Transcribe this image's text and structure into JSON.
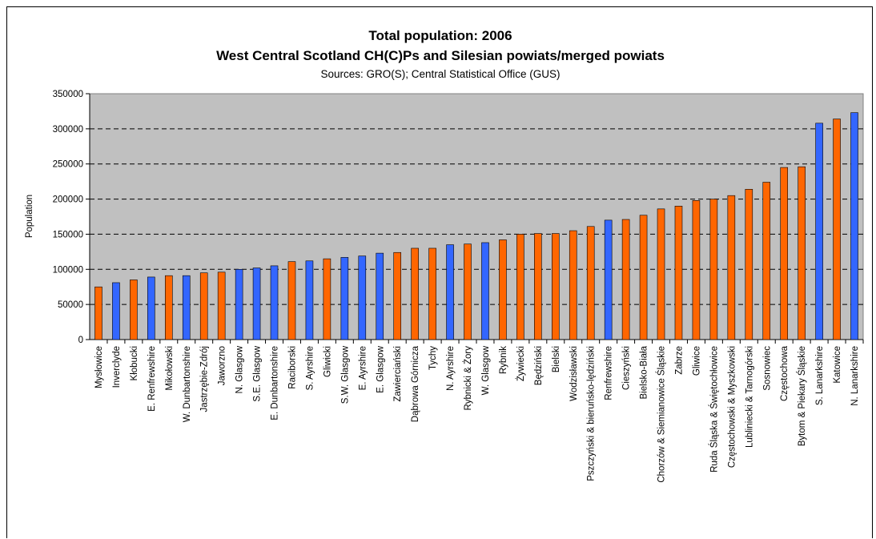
{
  "chart_data": {
    "type": "bar",
    "title": "Total population: 2006",
    "subtitle": "West Central Scotland CH(C)Ps and Silesian powiats/merged powiats",
    "source": "Sources: GRO(S); Central Statistical Office (GUS)",
    "ylabel": "Population",
    "xlabel": "",
    "ylim": [
      0,
      350000
    ],
    "yticks": [
      0,
      50000,
      100000,
      150000,
      200000,
      250000,
      300000,
      350000
    ],
    "ytick_labels": [
      "0",
      "50000",
      "100000",
      "150000",
      "200000",
      "250000",
      "300000",
      "350000"
    ],
    "grid": "horizontal dashed",
    "legend": "none",
    "plot_background": "#c0c0c0",
    "colors": {
      "scotland": "#3366ff",
      "silesia": "#ff6600",
      "bar_edge": "#000000",
      "grid": "#000000"
    },
    "categories": [
      "Mysłowice",
      "Inverclyde",
      "Kłobucki",
      "E. Renfrewshire",
      "Mikołowski",
      "W. Dunbartonshire",
      "Jastrzębie-Zdrój",
      "Jaworzno",
      "N. Glasgow",
      "S.E. Glasgow",
      "E. Dunbartonshire",
      "Raciborski",
      "S. Ayrshire",
      "Gliwicki",
      "S.W. Glasgow",
      "E. Ayrshire",
      "E. Glasgow",
      "Zawierciański",
      "Dąbrowa Górnicza",
      "Tychy",
      "N. Ayrshire",
      "Rybnicki & Żory",
      "W. Glasgow",
      "Rybnik",
      "Żywiecki",
      "Będziński",
      "Bielski",
      "Wodzisławski",
      "Pszczyński & bieruńsko-lędziński",
      "Renfrewshire",
      "Cieszyński",
      "Bielsko-Biała",
      "Chorzów & Siemianowice Śląskie",
      "Zabrze",
      "Gliwice",
      "Ruda Śląska & Świętochłowice",
      "Częstochowski & Myszkowski",
      "Lubliniecki & Tarnogórski",
      "Sosnowiec",
      "Częstochowa",
      "Bytom & Piekary Śląskie",
      "S. Lanarkshire",
      "Katowice",
      "N. Lanarkshire"
    ],
    "values": [
      75000,
      81000,
      85000,
      89000,
      91000,
      91000,
      95000,
      96000,
      100000,
      102000,
      105000,
      111000,
      112000,
      115000,
      117000,
      119000,
      123000,
      124000,
      130000,
      130000,
      135000,
      136000,
      138000,
      142000,
      150000,
      151000,
      151000,
      155000,
      161000,
      170000,
      171000,
      177000,
      186000,
      190000,
      198000,
      200000,
      205000,
      214000,
      224000,
      245000,
      246000,
      308000,
      314000,
      323000
    ],
    "groups": [
      "silesia",
      "scotland",
      "silesia",
      "scotland",
      "silesia",
      "scotland",
      "silesia",
      "silesia",
      "scotland",
      "scotland",
      "scotland",
      "silesia",
      "scotland",
      "silesia",
      "scotland",
      "scotland",
      "scotland",
      "silesia",
      "silesia",
      "silesia",
      "scotland",
      "silesia",
      "scotland",
      "silesia",
      "silesia",
      "silesia",
      "silesia",
      "silesia",
      "silesia",
      "scotland",
      "silesia",
      "silesia",
      "silesia",
      "silesia",
      "silesia",
      "silesia",
      "silesia",
      "silesia",
      "silesia",
      "silesia",
      "silesia",
      "scotland",
      "silesia",
      "scotland"
    ]
  }
}
